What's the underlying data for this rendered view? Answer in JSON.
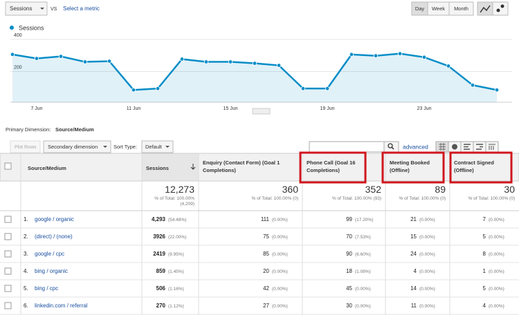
{
  "top_bar": {
    "metric": "Sessions",
    "vs": "VS",
    "select_metric": "Select a metric",
    "buttons": [
      "Day",
      "Week",
      "Month"
    ]
  },
  "chart_data": {
    "type": "line",
    "categories": [
      null,
      "7 Jun",
      null,
      null,
      null,
      "11 Jun",
      null,
      null,
      null,
      "15 Jun",
      null,
      null,
      null,
      "19 Jun",
      null,
      null,
      null,
      "23 Jun",
      null,
      null,
      null
    ],
    "series": [
      {
        "name": "Sessions",
        "color": "#058dc7",
        "values": [
          306,
          281,
          294,
          260,
          264,
          85,
          94,
          277,
          260,
          260,
          251,
          238,
          94,
          94,
          306,
          298,
          311,
          289,
          234,
          115,
          85
        ]
      }
    ],
    "ylim": [
      0,
      430
    ],
    "yticks": [
      200,
      400
    ],
    "grid": true
  },
  "dimension": {
    "label": "Primary Dimension:",
    "value": "Source/Medium"
  },
  "toolbar": {
    "plot_rows": "Plot Rows",
    "secondary": "Secondary dimension",
    "sort_label": "Sort Type:",
    "sort_value": "Default",
    "advanced": "advanced"
  },
  "table": {
    "columns": [
      "Source/Medium",
      "Sessions",
      "Enquiry (Contact Form) (Goal 1 Completions)",
      "Phone Call (Goal 16 Completions)",
      "Meeting Booked (Offline)",
      "Contract Signed (Offline)"
    ],
    "totals": [
      {
        "value": "12,273",
        "pct": "% of Total: 100.00% (4,209)"
      },
      {
        "value": "360",
        "pct": "% of Total: 100.00% (0)"
      },
      {
        "value": "352",
        "pct": "% of Total: 100.00% (93)"
      },
      {
        "value": "89",
        "pct": "% of Total: 100.00% (0)"
      },
      {
        "value": "30",
        "pct": "% of Total: 100.00% (0)"
      }
    ],
    "rows": [
      {
        "index": "1.",
        "source": "google / organic",
        "cells": [
          {
            "value": "4,293",
            "pct": "(54.48%)"
          },
          {
            "value": "111",
            "pct": "(0.00%)"
          },
          {
            "value": "99",
            "pct": "(17.20%)"
          },
          {
            "value": "21",
            "pct": "(0.00%)"
          },
          {
            "value": "7",
            "pct": "(0.00%)"
          }
        ]
      },
      {
        "index": "2.",
        "source": "(direct) / (none)",
        "cells": [
          {
            "value": "3926",
            "pct": "(22.00%)"
          },
          {
            "value": "75",
            "pct": "(0.00%)"
          },
          {
            "value": "70",
            "pct": "(7.53%)"
          },
          {
            "value": "15",
            "pct": "(0.00%)"
          },
          {
            "value": "5",
            "pct": "(0.00%)"
          }
        ]
      },
      {
        "index": "3.",
        "source": "google / cpc",
        "cells": [
          {
            "value": "2419",
            "pct": "(9.95%)"
          },
          {
            "value": "85",
            "pct": "(0.00%)"
          },
          {
            "value": "90",
            "pct": "(6.60%)"
          },
          {
            "value": "24",
            "pct": "(0.00%)"
          },
          {
            "value": "8",
            "pct": "(0.00%)"
          }
        ]
      },
      {
        "index": "4.",
        "source": "bing / organic",
        "cells": [
          {
            "value": "859",
            "pct": "(1.45%)"
          },
          {
            "value": "20",
            "pct": "(0.00%)"
          },
          {
            "value": "18",
            "pct": "(1.08%)"
          },
          {
            "value": "4",
            "pct": "(0.00%)"
          },
          {
            "value": "1",
            "pct": "(0.00%)"
          }
        ]
      },
      {
        "index": "5.",
        "source": "bing / cpc",
        "cells": [
          {
            "value": "506",
            "pct": "(1.16%)"
          },
          {
            "value": "42",
            "pct": "(0.00%)"
          },
          {
            "value": "45",
            "pct": "(0.00%)"
          },
          {
            "value": "14",
            "pct": "(0.00%)"
          },
          {
            "value": "5",
            "pct": "(0.00%)"
          }
        ]
      },
      {
        "index": "6.",
        "source": "linkedin.com / referral",
        "cells": [
          {
            "value": "270",
            "pct": "(1.12%)"
          },
          {
            "value": "27",
            "pct": "(0.00%)"
          },
          {
            "value": "30",
            "pct": "(0.00%)"
          },
          {
            "value": "11",
            "pct": "(0.00%)"
          },
          {
            "value": "4",
            "pct": "(0.00%)"
          }
        ]
      }
    ]
  }
}
